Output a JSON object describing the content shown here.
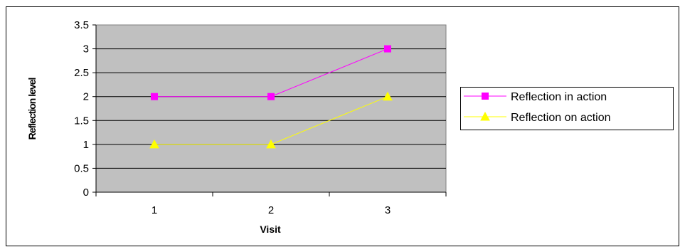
{
  "chart_data": {
    "type": "line",
    "categories": [
      "1",
      "2",
      "3"
    ],
    "series": [
      {
        "name": "Reflection in action",
        "values": [
          2,
          2,
          3
        ],
        "color": "#ff00ff",
        "marker": "square"
      },
      {
        "name": "Reflection on action",
        "values": [
          1,
          1,
          2
        ],
        "color": "#ffff00",
        "marker": "triangle"
      }
    ],
    "title": "",
    "xlabel": "Visit",
    "ylabel": "Reflection level",
    "ylim": [
      0,
      3.5
    ],
    "yticks": [
      "0",
      "0.5",
      "1",
      "1.5",
      "2",
      "2.5",
      "3",
      "3.5"
    ],
    "grid": true,
    "legend_position": "right",
    "plot_background": "#c0c0c0"
  }
}
